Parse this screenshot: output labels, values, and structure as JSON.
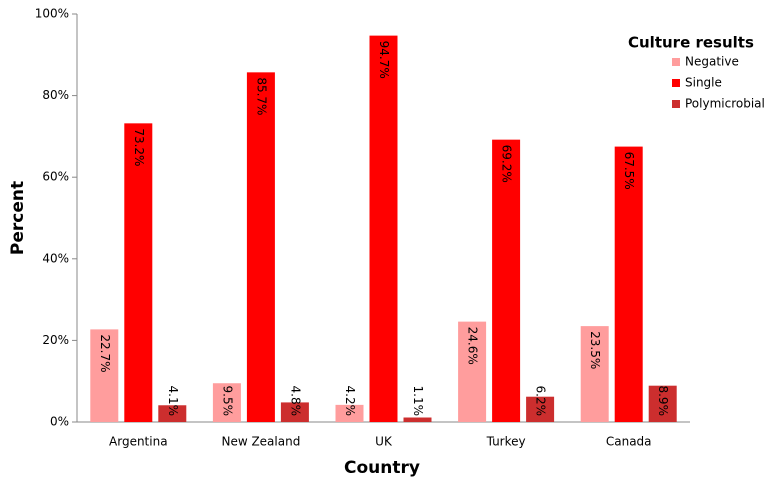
{
  "chart_data": {
    "type": "bar",
    "x_label": "Country",
    "y_label": "Percent",
    "legend_title": "Culture results",
    "legend_position": "top-right",
    "categories": [
      "Argentina",
      "New Zealand",
      "UK",
      "Turkey",
      "Canada"
    ],
    "series": [
      {
        "name": "Negative",
        "color": "#ff9d9d",
        "values": [
          22.7,
          9.5,
          4.2,
          24.6,
          23.5
        ],
        "value_labels": [
          "22.7%",
          "9.5%",
          "4.2%",
          "24.6%",
          "23.5%"
        ]
      },
      {
        "name": "Single",
        "color": "#ff0000",
        "values": [
          73.2,
          85.7,
          94.7,
          69.2,
          67.5
        ],
        "value_labels": [
          "73.2%",
          "85.7%",
          "94.7%",
          "69.2%",
          "67.5%"
        ]
      },
      {
        "name": "Polymicrobial",
        "color": "#cc2e2e",
        "values": [
          4.1,
          4.8,
          1.1,
          6.2,
          8.9
        ],
        "value_labels": [
          "4.1%",
          "4.8%",
          "1.1%",
          "6.2%",
          "8.9%"
        ]
      }
    ],
    "ylim": [
      0,
      100
    ],
    "yticks": [
      {
        "value": 0,
        "label": "0%"
      },
      {
        "value": 20,
        "label": "20%"
      },
      {
        "value": 40,
        "label": "40%"
      },
      {
        "value": 60,
        "label": "60%"
      },
      {
        "value": 80,
        "label": "80%"
      },
      {
        "value": 100,
        "label": "100%"
      }
    ],
    "grid": false
  }
}
